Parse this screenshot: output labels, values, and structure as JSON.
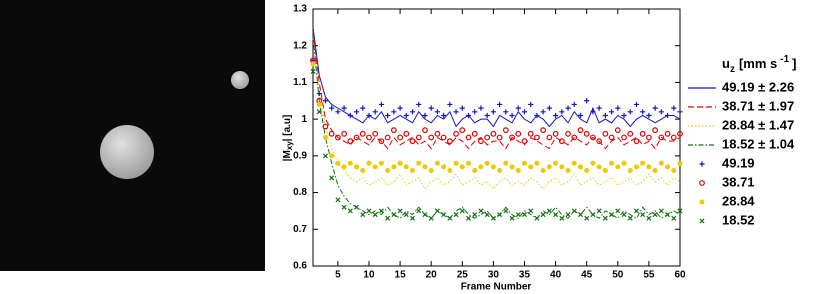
{
  "chart_data": {
    "type": "line",
    "y_label": {
      "main": "|M",
      "sub": "xy",
      "rest": "| [a.u]"
    },
    "x_label": "Frame Number",
    "legend_title": {
      "main": "u",
      "sub": "z",
      "unit": "[mm s",
      "sup": "-1",
      "close": "]"
    },
    "legend": "right",
    "xlim": [
      1,
      60
    ],
    "xticks": [
      5,
      10,
      15,
      20,
      25,
      30,
      35,
      40,
      45,
      50,
      55,
      60
    ],
    "ylim": [
      0.6,
      1.3
    ],
    "yticks": [
      0.6,
      0.7,
      0.8,
      0.9,
      1,
      1.1,
      1.2,
      1.3
    ],
    "x": [
      1,
      2,
      3,
      4,
      5,
      6,
      7,
      8,
      9,
      10,
      11,
      12,
      13,
      14,
      15,
      16,
      17,
      18,
      19,
      20,
      21,
      22,
      23,
      24,
      25,
      26,
      27,
      28,
      29,
      30,
      31,
      32,
      33,
      34,
      35,
      36,
      37,
      38,
      39,
      40,
      41,
      42,
      43,
      44,
      45,
      46,
      47,
      48,
      49,
      50,
      51,
      52,
      53,
      54,
      55,
      56,
      57,
      58,
      59,
      60
    ],
    "series": [
      {
        "name": "49.19 ± 2.26",
        "color": "#1414c8",
        "style": "line",
        "dash": "solid",
        "values": [
          1.25,
          1.12,
          1.06,
          1.04,
          1.03,
          1.02,
          1.01,
          1.0,
          0.99,
          1.01,
          1.0,
          1.02,
          0.99,
          1.0,
          1.01,
          1.0,
          0.99,
          1.02,
          1.0,
          0.99,
          1.01,
          1.0,
          1.02,
          0.98,
          1.0,
          1.01,
          0.99,
          1.0,
          1.0,
          0.98,
          1.01,
          1.0,
          0.99,
          1.02,
          1.0,
          0.99,
          1.01,
          1.0,
          0.98,
          1.0,
          1.01,
          0.99,
          1.02,
          1.0,
          0.99,
          1.03,
          0.99,
          1.0,
          0.99,
          1.01,
          1.0,
          0.98,
          1.0,
          1.01,
          1.0,
          0.99,
          1.0,
          1.01,
          1.01,
          1.0
        ]
      },
      {
        "name": "38.71 ± 1.97",
        "color": "#e00000",
        "style": "line",
        "dash": "dashed",
        "values": [
          1.24,
          1.1,
          1.0,
          0.97,
          0.95,
          0.94,
          0.93,
          0.95,
          0.94,
          0.93,
          0.95,
          0.94,
          0.92,
          0.95,
          0.93,
          0.94,
          0.95,
          0.93,
          0.94,
          0.92,
          0.95,
          0.94,
          0.93,
          0.95,
          0.94,
          0.92,
          0.94,
          0.95,
          0.93,
          0.94,
          0.94,
          0.92,
          0.95,
          0.94,
          0.93,
          0.95,
          0.94,
          0.93,
          0.92,
          0.95,
          0.94,
          0.93,
          0.95,
          0.94,
          0.93,
          0.95,
          0.94,
          0.92,
          0.94,
          0.95,
          0.93,
          0.94,
          0.95,
          0.93,
          0.94,
          0.92,
          0.95,
          0.94,
          0.94,
          0.95
        ]
      },
      {
        "name": "28.84 ± 1.47",
        "color": "#f0c800",
        "style": "line",
        "dash": "dotted",
        "values": [
          1.22,
          1.08,
          0.98,
          0.92,
          0.88,
          0.86,
          0.84,
          0.83,
          0.84,
          0.82,
          0.83,
          0.84,
          0.82,
          0.83,
          0.85,
          0.82,
          0.83,
          0.84,
          0.81,
          0.83,
          0.84,
          0.82,
          0.83,
          0.85,
          0.82,
          0.83,
          0.84,
          0.82,
          0.83,
          0.81,
          0.83,
          0.84,
          0.82,
          0.83,
          0.82,
          0.84,
          0.83,
          0.81,
          0.83,
          0.84,
          0.82,
          0.83,
          0.85,
          0.82,
          0.83,
          0.84,
          0.82,
          0.83,
          0.84,
          0.82,
          0.83,
          0.84,
          0.82,
          0.83,
          0.85,
          0.83,
          0.84,
          0.82,
          0.84,
          0.83
        ]
      },
      {
        "name": "18.52 ± 1.04",
        "color": "#107010",
        "style": "line",
        "dash": "dashdot",
        "values": [
          1.23,
          1.05,
          0.95,
          0.88,
          0.82,
          0.79,
          0.77,
          0.76,
          0.75,
          0.74,
          0.75,
          0.74,
          0.76,
          0.74,
          0.73,
          0.75,
          0.74,
          0.76,
          0.74,
          0.73,
          0.75,
          0.74,
          0.73,
          0.75,
          0.76,
          0.74,
          0.73,
          0.74,
          0.75,
          0.73,
          0.74,
          0.76,
          0.74,
          0.73,
          0.75,
          0.74,
          0.73,
          0.75,
          0.74,
          0.76,
          0.74,
          0.73,
          0.75,
          0.74,
          0.76,
          0.74,
          0.73,
          0.75,
          0.74,
          0.73,
          0.75,
          0.74,
          0.73,
          0.76,
          0.74,
          0.75,
          0.73,
          0.74,
          0.75,
          0.74
        ]
      },
      {
        "name": "49.19",
        "color": "#1414c8",
        "style": "marker",
        "marker": "plus",
        "values": [
          1.16,
          1.07,
          1.05,
          1.03,
          1.02,
          1.03,
          1.01,
          1.02,
          1.03,
          1.01,
          1.02,
          1.04,
          1.01,
          1.02,
          1.03,
          1.01,
          1.02,
          1.04,
          1.01,
          1.03,
          1.02,
          1.01,
          1.04,
          1.02,
          1.03,
          1.01,
          1.02,
          1.03,
          1.01,
          1.02,
          1.04,
          1.02,
          1.01,
          1.03,
          1.02,
          1.04,
          1.01,
          1.02,
          1.03,
          1.01,
          1.02,
          1.03,
          1.04,
          1.01,
          1.05,
          1.02,
          1.03,
          1.01,
          1.02,
          1.03,
          1.01,
          1.02,
          1.04,
          1.02,
          1.01,
          1.03,
          1.02,
          1.01,
          1.03,
          1.02
        ]
      },
      {
        "name": "38.71",
        "color": "#e00000",
        "style": "marker",
        "marker": "circle",
        "values": [
          1.16,
          1.05,
          0.98,
          0.96,
          0.95,
          0.96,
          0.94,
          0.95,
          0.96,
          0.95,
          0.96,
          0.94,
          0.95,
          0.97,
          0.95,
          0.96,
          0.94,
          0.95,
          0.97,
          0.95,
          0.96,
          0.95,
          0.94,
          0.96,
          0.97,
          0.95,
          0.96,
          0.94,
          0.95,
          0.96,
          0.95,
          0.97,
          0.95,
          0.96,
          0.94,
          0.96,
          0.95,
          0.97,
          0.95,
          0.96,
          0.94,
          0.96,
          0.95,
          0.97,
          0.96,
          0.95,
          0.94,
          0.96,
          0.95,
          0.97,
          0.95,
          0.96,
          0.94,
          0.96,
          0.95,
          0.97,
          0.95,
          0.96,
          0.95,
          0.96
        ]
      },
      {
        "name": "28.84",
        "color": "#f0c800",
        "style": "marker",
        "marker": "dot",
        "values": [
          1.15,
          1.04,
          0.95,
          0.9,
          0.88,
          0.87,
          0.88,
          0.87,
          0.86,
          0.88,
          0.87,
          0.88,
          0.86,
          0.87,
          0.88,
          0.87,
          0.86,
          0.88,
          0.87,
          0.86,
          0.88,
          0.87,
          0.86,
          0.88,
          0.87,
          0.88,
          0.86,
          0.87,
          0.88,
          0.87,
          0.86,
          0.88,
          0.87,
          0.86,
          0.88,
          0.87,
          0.88,
          0.86,
          0.87,
          0.88,
          0.87,
          0.86,
          0.88,
          0.87,
          0.86,
          0.88,
          0.87,
          0.86,
          0.88,
          0.87,
          0.88,
          0.86,
          0.87,
          0.88,
          0.87,
          0.86,
          0.88,
          0.87,
          0.86,
          0.88
        ]
      },
      {
        "name": "18.52",
        "color": "#107010",
        "style": "marker",
        "marker": "cross",
        "values": [
          1.13,
          1.02,
          0.9,
          0.84,
          0.78,
          0.76,
          0.75,
          0.76,
          0.74,
          0.75,
          0.74,
          0.75,
          0.73,
          0.74,
          0.75,
          0.74,
          0.73,
          0.75,
          0.74,
          0.73,
          0.75,
          0.74,
          0.73,
          0.74,
          0.75,
          0.73,
          0.74,
          0.75,
          0.74,
          0.73,
          0.74,
          0.75,
          0.73,
          0.74,
          0.74,
          0.75,
          0.73,
          0.74,
          0.75,
          0.74,
          0.73,
          0.74,
          0.75,
          0.74,
          0.73,
          0.74,
          0.75,
          0.73,
          0.74,
          0.75,
          0.74,
          0.73,
          0.75,
          0.74,
          0.73,
          0.74,
          0.75,
          0.74,
          0.73,
          0.75
        ]
      }
    ]
  }
}
